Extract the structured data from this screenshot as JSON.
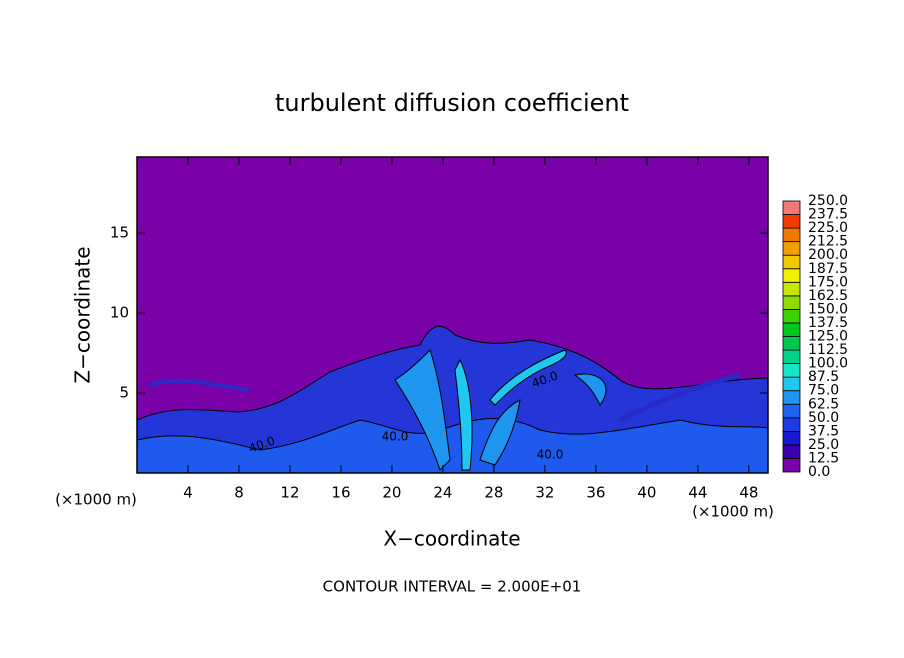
{
  "chart_data": {
    "type": "contour",
    "title": "turbulent diffusion coefficient",
    "xlabel": "X−coordinate",
    "ylabel": "Z−coordinate",
    "x_unit_labels": [
      "(×1000 m)",
      "(×1000 m)"
    ],
    "annotation": "CONTOUR INTERVAL = 2.000E+01",
    "contour_labels": [
      "40.0",
      "40.0",
      "40.0",
      "40.0"
    ],
    "xlim": [
      0,
      49.5
    ],
    "xticks": [
      4,
      8,
      12,
      16,
      20,
      24,
      28,
      32,
      36,
      40,
      44,
      48
    ],
    "ylim": [
      0,
      19.75
    ],
    "yticks": [
      5,
      10,
      15
    ],
    "colorbar": {
      "levels": [
        {
          "value": 0,
          "label": "0.0"
        },
        12.5,
        {
          "value": 25,
          "label": "25.0"
        },
        37.5,
        {
          "value": 50,
          "label": "50.0"
        },
        62.5,
        {
          "value": 75,
          "label": "75.0"
        },
        87.5,
        {
          "value": 100,
          "label": "100.0"
        },
        112.5,
        {
          "value": 125,
          "label": "125.0"
        },
        137.5,
        {
          "value": 150,
          "label": "150.0"
        },
        162.5,
        {
          "value": 175,
          "label": "175.0"
        },
        187.5,
        {
          "value": 200,
          "label": "200.0"
        },
        212.5,
        {
          "value": 225,
          "label": "225.0"
        },
        237.5,
        {
          "value": 250,
          "label": "250.0"
        }
      ],
      "colors": [
        "#7a00a8",
        "#3a00b0",
        "#1a1ad0",
        "#1e3ce6",
        "#1e64f0",
        "#1e96f0",
        "#1ec8f0",
        "#14e6c8",
        "#00d28c",
        "#00c850",
        "#00c81e",
        "#3cd200",
        "#8cdc00",
        "#c8e600",
        "#f0f000",
        "#f0c800",
        "#f0a000",
        "#f07800",
        "#f03c00",
        "#f07878"
      ]
    }
  }
}
